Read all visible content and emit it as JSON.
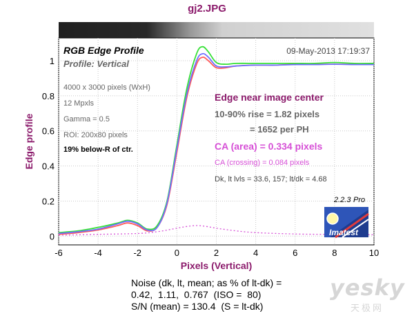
{
  "window_title": "gj2.JPG",
  "header": {
    "plot_title": "RGB Edge Profile",
    "profile": "Profile: Vertical",
    "timestamp": "09-May-2013 17:19:37"
  },
  "image_info": {
    "dimensions": "4000 x 3000 pixels (WxH)",
    "megapixels": "12 Mpxls",
    "gamma": "Gamma = 0.5",
    "roi": "ROI: 200x80 pixels",
    "location": "19% below-R of ctr."
  },
  "results": {
    "heading": "Edge near image center",
    "rise": "10-90% rise = 1.82 pixels",
    "per_ph": "= 1652 per PH",
    "ca_area": "CA (area) = 0.334 pixels",
    "ca_crossing": "CA (crossing) = 0.084 pixels",
    "levels": "Dk, lt lvls = 33.6, 157;  lt/dk = 4.68"
  },
  "badge": {
    "version": "2.2.3",
    "edition": "Pro",
    "brand": "Imatest"
  },
  "noise": {
    "line1": "Noise (dk, lt, mean; as % of lt-dk) =",
    "line2": "0.42,  1.11,  0.767  (ISO =  80)",
    "line3": "S/N (mean) = 130.4  (S = lt-dk)"
  },
  "watermark": {
    "text": "yesky",
    "subtext": "天极网"
  },
  "colors": {
    "title": "#8b1a6b",
    "heading": "#8b1a6b",
    "axis_label": "#8b1a6b",
    "ca": "#d64fd6",
    "red": "#ff5a5a",
    "green": "#35e035",
    "blue": "#6f6fff",
    "gray_text": "#666666"
  },
  "chart_data": {
    "type": "line",
    "xlabel": "Pixels (Vertical)",
    "ylabel": "Edge profile",
    "xlim": [
      -6,
      10
    ],
    "ylim": [
      -0.05,
      1.13
    ],
    "xticks": [
      -6,
      -4,
      -2,
      0,
      2,
      4,
      6,
      8,
      10
    ],
    "yticks": [
      0,
      0.2,
      0.4,
      0.6,
      0.8,
      1
    ],
    "grid": true,
    "series": [
      {
        "name": "R",
        "color": "#ff5a5a",
        "x": [
          -6,
          -5,
          -4,
          -3,
          -2.5,
          -2,
          -1.5,
          -1,
          -0.5,
          0,
          0.5,
          1,
          1.3,
          1.6,
          2,
          2.5,
          3,
          4,
          5,
          6,
          7,
          8,
          9,
          10
        ],
        "y": [
          0.01,
          0.02,
          0.035,
          0.06,
          0.075,
          0.06,
          0.03,
          0.05,
          0.18,
          0.48,
          0.79,
          0.98,
          1.02,
          1.0,
          0.96,
          0.96,
          0.97,
          0.975,
          0.975,
          0.98,
          0.98,
          0.98,
          0.98,
          0.98
        ]
      },
      {
        "name": "G",
        "color": "#35e035",
        "x": [
          -6,
          -5,
          -4,
          -3,
          -2.5,
          -2,
          -1.5,
          -1,
          -0.5,
          0,
          0.5,
          1,
          1.3,
          1.6,
          2,
          2.5,
          3,
          4,
          5,
          6,
          7,
          8,
          9,
          10
        ],
        "y": [
          0.02,
          0.03,
          0.05,
          0.075,
          0.09,
          0.075,
          0.04,
          0.06,
          0.2,
          0.52,
          0.84,
          1.04,
          1.08,
          1.05,
          0.99,
          0.98,
          0.985,
          0.985,
          0.985,
          0.985,
          0.985,
          0.99,
          0.985,
          0.985
        ]
      },
      {
        "name": "B",
        "color": "#6f6fff",
        "x": [
          -6,
          -5,
          -4,
          -3,
          -2.5,
          -2,
          -1.5,
          -1,
          -0.5,
          0,
          0.5,
          1,
          1.3,
          1.6,
          2,
          2.5,
          3,
          4,
          5,
          6,
          7,
          8,
          9,
          10
        ],
        "y": [
          0.015,
          0.025,
          0.04,
          0.07,
          0.085,
          0.07,
          0.035,
          0.05,
          0.19,
          0.5,
          0.81,
          1.0,
          1.04,
          1.02,
          0.97,
          0.965,
          0.97,
          0.975,
          0.975,
          0.978,
          0.978,
          0.98,
          0.978,
          0.978
        ]
      },
      {
        "name": "CA",
        "color": "#d64fd6",
        "dashed": true,
        "x": [
          -6,
          -4,
          -2,
          -1,
          0,
          0.5,
          1,
          1.5,
          2,
          3,
          4,
          6,
          8,
          10
        ],
        "y": [
          0.005,
          0.01,
          0.015,
          0.025,
          0.045,
          0.055,
          0.06,
          0.055,
          0.045,
          0.03,
          0.02,
          0.012,
          0.01,
          0.008
        ]
      }
    ]
  }
}
